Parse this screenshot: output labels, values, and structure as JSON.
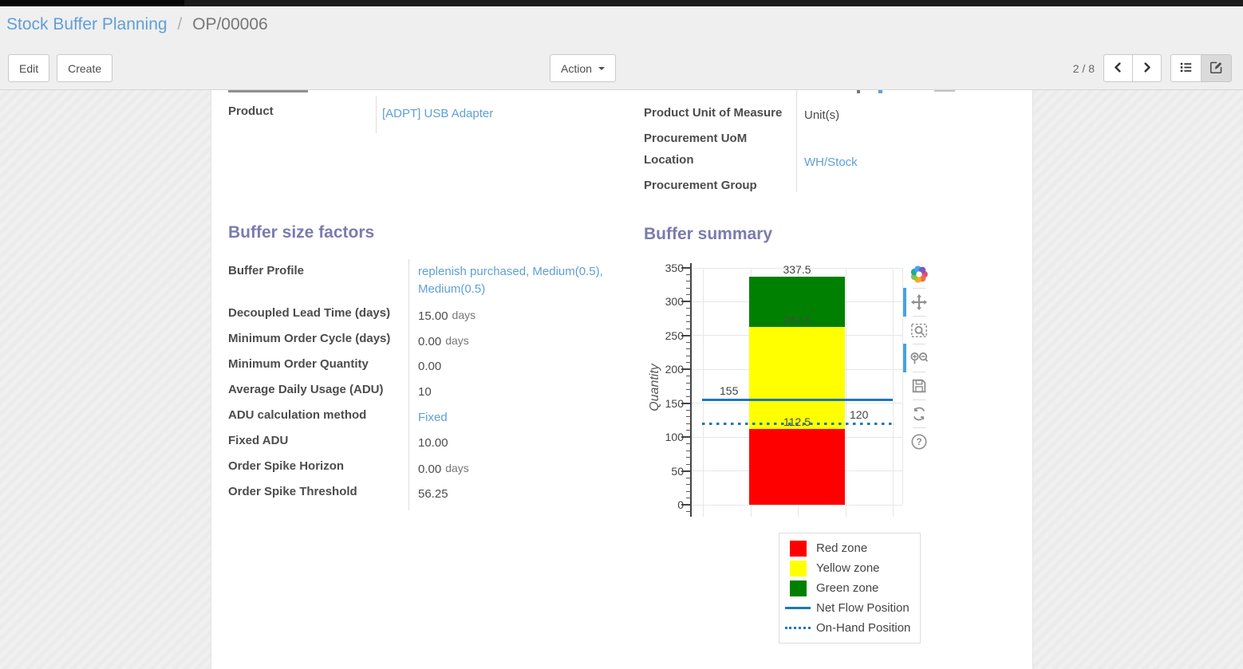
{
  "breadcrumb": {
    "parent": "Stock Buffer Planning",
    "separator": "/",
    "current": "OP/00006"
  },
  "control_panel": {
    "edit_label": "Edit",
    "create_label": "Create",
    "action_label": "Action",
    "pager": "2 / 8"
  },
  "colors": {
    "heading": "#7c7bad",
    "link": "#5f9fd5",
    "label": "#4c4c4c"
  },
  "form": {
    "product_row": {
      "label": "Product",
      "value": "[ADPT] USB Adapter"
    },
    "right_rows": [
      {
        "label": "Product Unit of Measure",
        "value": "Unit(s)"
      },
      {
        "label": "Procurement UoM",
        "value": ""
      },
      {
        "label": "Location",
        "value": "WH/Stock"
      },
      {
        "label": "Procurement Group",
        "value": ""
      }
    ],
    "factors": {
      "title": "Buffer size factors",
      "rows": [
        {
          "label": "Buffer Profile",
          "value": "replenish purchased, Medium(0.5), Medium(0.5)"
        },
        {
          "label": "Decoupled Lead Time (days)",
          "value": "15.00",
          "unit": "days"
        },
        {
          "label": "Minimum Order Cycle (days)",
          "value": "0.00",
          "unit": "days"
        },
        {
          "label": "Minimum Order Quantity",
          "value": "0.00"
        },
        {
          "label": "Average Daily Usage (ADU)",
          "value": "10"
        },
        {
          "label": "ADU calculation method",
          "value": "Fixed"
        },
        {
          "label": "Fixed ADU",
          "value": "10.00"
        },
        {
          "label": "Order Spike Horizon",
          "value": "0.00",
          "unit": "days"
        },
        {
          "label": "Order Spike Threshold",
          "value": "56.25"
        }
      ]
    },
    "summary_title": "Buffer summary"
  },
  "chart_data": {
    "type": "bar",
    "title": "Buffer summary",
    "ylabel": "Quantity",
    "ylim": [
      0,
      350
    ],
    "yticks": [
      0,
      50,
      100,
      150,
      200,
      250,
      300,
      350
    ],
    "minor_tick_step": 10,
    "grid": true,
    "zones": [
      {
        "name": "Red zone",
        "from": 0,
        "to": 112.5,
        "color": "#ff0000"
      },
      {
        "name": "Yellow zone",
        "from": 112.5,
        "to": 262.5,
        "color": "#ffff00"
      },
      {
        "name": "Green zone",
        "from": 262.5,
        "to": 337.5,
        "color": "#008000"
      }
    ],
    "annotations": [
      {
        "text": "337.5",
        "value": 337.5,
        "color": "#444444"
      },
      {
        "text": "262.5",
        "value": 262.5,
        "color": "#3c503c"
      },
      {
        "text": "112.5",
        "value": 112.5,
        "color": "#4a4a3a"
      }
    ],
    "lines": [
      {
        "name": "Net Flow Position",
        "value": 155,
        "label": "155",
        "style": "solid",
        "color": "#1f77b4",
        "label_side": "left"
      },
      {
        "name": "On-Hand Position",
        "value": 120,
        "label": "120",
        "style": "dotted",
        "color": "#1f77b4",
        "label_side": "right"
      }
    ],
    "legend": {
      "position": "bottom-right",
      "items": [
        "Red zone",
        "Yellow zone",
        "Green zone",
        "Net Flow Position",
        "On-Hand Position"
      ]
    }
  },
  "modebar": {
    "icons": [
      "plotly-logo",
      "pan",
      "box-zoom",
      "zoom-in-out",
      "save",
      "reset",
      "help"
    ]
  }
}
